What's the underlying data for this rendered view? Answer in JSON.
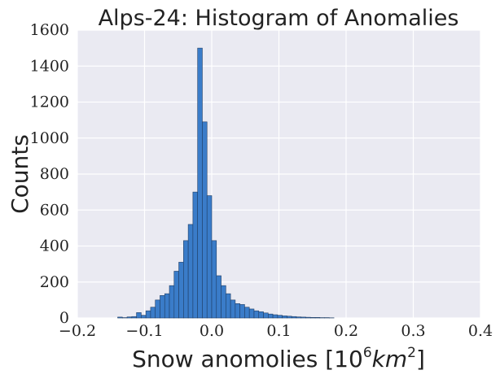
{
  "chart_data": {
    "type": "bar",
    "title": "Alps-24: Histogram of Anomalies",
    "xlabel": "Snow anomolies [10",
    "xlabel_exponent": "6",
    "xlabel_tail": "km",
    "xlabel_tail_exponent": "2",
    "xlabel_close": "]",
    "ylabel": "Counts",
    "xlim": [
      -0.2,
      0.4
    ],
    "ylim": [
      0,
      1600
    ],
    "xticks": [
      "−0.2",
      "−0.1",
      "0.0",
      "0.1",
      "0.2",
      "0.3",
      "0.4"
    ],
    "xtick_values": [
      -0.2,
      -0.1,
      0.0,
      0.1,
      0.2,
      0.3,
      0.4
    ],
    "yticks": [
      "0",
      "200",
      "400",
      "600",
      "800",
      "1000",
      "1200",
      "1400",
      "1600"
    ],
    "ytick_values": [
      0,
      200,
      400,
      600,
      800,
      1000,
      1200,
      1400,
      1600
    ],
    "grid": true,
    "bar_color": "#3a7cc9",
    "bar_edge_color": "#1f3e66",
    "background_color": "#eaeaf2",
    "bins": [
      {
        "x0": -0.14,
        "x1": -0.133,
        "count": 5
      },
      {
        "x0": -0.133,
        "x1": -0.126,
        "count": 2
      },
      {
        "x0": -0.126,
        "x1": -0.119,
        "count": 6
      },
      {
        "x0": -0.119,
        "x1": -0.112,
        "count": 8
      },
      {
        "x0": -0.112,
        "x1": -0.105,
        "count": 30
      },
      {
        "x0": -0.105,
        "x1": -0.098,
        "count": 15
      },
      {
        "x0": -0.098,
        "x1": -0.091,
        "count": 40
      },
      {
        "x0": -0.091,
        "x1": -0.084,
        "count": 60
      },
      {
        "x0": -0.084,
        "x1": -0.077,
        "count": 100
      },
      {
        "x0": -0.077,
        "x1": -0.07,
        "count": 125
      },
      {
        "x0": -0.07,
        "x1": -0.063,
        "count": 135
      },
      {
        "x0": -0.063,
        "x1": -0.056,
        "count": 180
      },
      {
        "x0": -0.056,
        "x1": -0.049,
        "count": 260
      },
      {
        "x0": -0.049,
        "x1": -0.042,
        "count": 310
      },
      {
        "x0": -0.042,
        "x1": -0.035,
        "count": 430
      },
      {
        "x0": -0.035,
        "x1": -0.028,
        "count": 520
      },
      {
        "x0": -0.028,
        "x1": -0.021,
        "count": 700
      },
      {
        "x0": -0.021,
        "x1": -0.014,
        "count": 1500
      },
      {
        "x0": -0.014,
        "x1": -0.007,
        "count": 1090
      },
      {
        "x0": -0.007,
        "x1": 0.0,
        "count": 680
      },
      {
        "x0": 0.0,
        "x1": 0.007,
        "count": 430
      },
      {
        "x0": 0.007,
        "x1": 0.014,
        "count": 235
      },
      {
        "x0": 0.014,
        "x1": 0.021,
        "count": 180
      },
      {
        "x0": 0.021,
        "x1": 0.028,
        "count": 135
      },
      {
        "x0": 0.028,
        "x1": 0.035,
        "count": 100
      },
      {
        "x0": 0.035,
        "x1": 0.042,
        "count": 80
      },
      {
        "x0": 0.042,
        "x1": 0.049,
        "count": 75
      },
      {
        "x0": 0.049,
        "x1": 0.056,
        "count": 60
      },
      {
        "x0": 0.056,
        "x1": 0.063,
        "count": 50
      },
      {
        "x0": 0.063,
        "x1": 0.07,
        "count": 40
      },
      {
        "x0": 0.07,
        "x1": 0.077,
        "count": 35
      },
      {
        "x0": 0.077,
        "x1": 0.084,
        "count": 28
      },
      {
        "x0": 0.084,
        "x1": 0.091,
        "count": 22
      },
      {
        "x0": 0.091,
        "x1": 0.098,
        "count": 18
      },
      {
        "x0": 0.098,
        "x1": 0.105,
        "count": 15
      },
      {
        "x0": 0.105,
        "x1": 0.112,
        "count": 12
      },
      {
        "x0": 0.112,
        "x1": 0.119,
        "count": 10
      },
      {
        "x0": 0.119,
        "x1": 0.126,
        "count": 8
      },
      {
        "x0": 0.126,
        "x1": 0.133,
        "count": 6
      },
      {
        "x0": 0.133,
        "x1": 0.14,
        "count": 5
      },
      {
        "x0": 0.14,
        "x1": 0.147,
        "count": 4
      },
      {
        "x0": 0.147,
        "x1": 0.154,
        "count": 3
      },
      {
        "x0": 0.154,
        "x1": 0.161,
        "count": 3
      },
      {
        "x0": 0.161,
        "x1": 0.168,
        "count": 2
      },
      {
        "x0": 0.168,
        "x1": 0.175,
        "count": 2
      },
      {
        "x0": 0.175,
        "x1": 0.182,
        "count": 1
      }
    ]
  }
}
